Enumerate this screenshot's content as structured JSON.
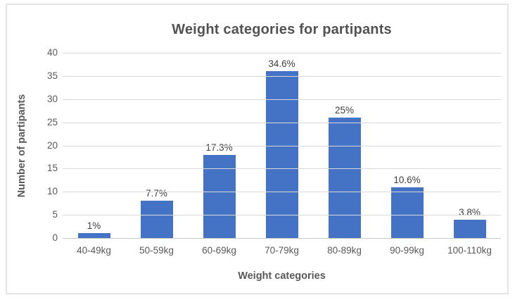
{
  "chart_data": {
    "type": "bar",
    "title": "Weight categories for partipants",
    "xlabel": "Weight categories",
    "ylabel": "Number of partipants",
    "categories": [
      "40-49kg",
      "50-59kg",
      "60-69kg",
      "70-79kg",
      "80-89kg",
      "90-99kg",
      "100-110kg"
    ],
    "values": [
      1,
      8,
      18,
      36,
      26,
      11,
      4
    ],
    "data_labels": [
      "1%",
      "7.7%",
      "17.3%",
      "34.6%",
      "25%",
      "10.6%",
      "3.8%"
    ],
    "ylim": [
      0,
      40
    ],
    "yticks": [
      0,
      5,
      10,
      15,
      20,
      25,
      30,
      35,
      40
    ],
    "grid": true,
    "legend": "none",
    "colors": {
      "bar": "#4472C4",
      "gridline": "#D9D9D9",
      "axis_line": "#C9C9C9",
      "frame_border": "#E4E4E4",
      "title_text": "#525252",
      "tick_text": "#595959",
      "axis_title_text": "#595959",
      "data_label_text": "#404040"
    }
  }
}
